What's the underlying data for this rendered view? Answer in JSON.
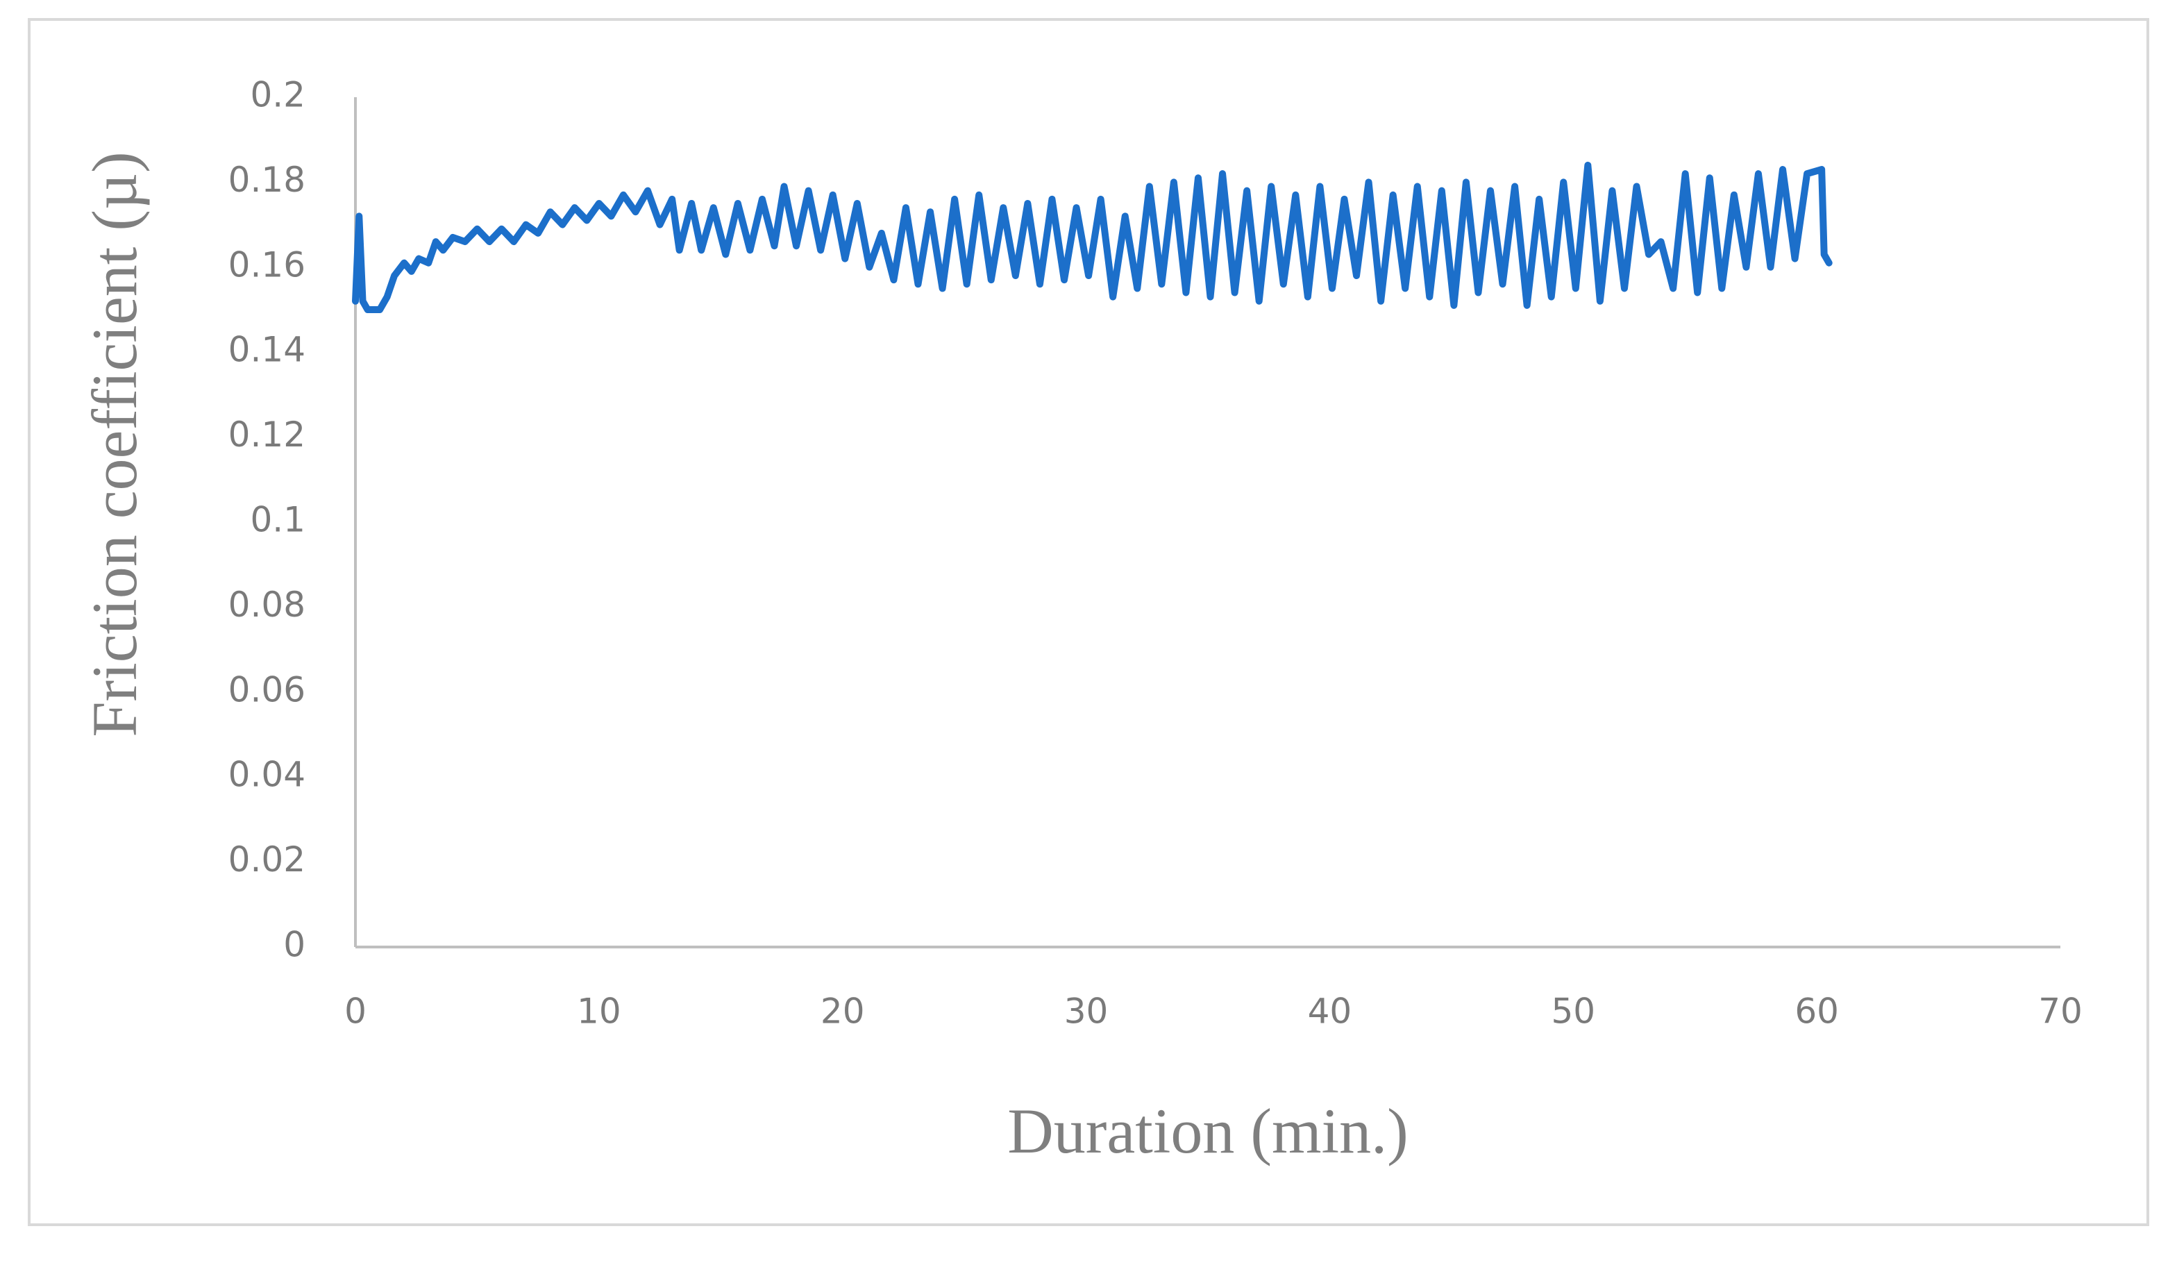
{
  "chart_data": {
    "type": "line",
    "xlabel": "Duration (min.)",
    "ylabel": "Friction coefficient (µ)",
    "xlim": [
      0,
      70
    ],
    "xticks": [
      0,
      10,
      20,
      30,
      40,
      50,
      60,
      70
    ],
    "ylim": [
      0,
      0.2
    ],
    "yticks": [
      0,
      0.02,
      0.04,
      0.06,
      0.08,
      0.1,
      0.12,
      0.14,
      0.16,
      0.18,
      0.2
    ],
    "grid": false,
    "series": [
      {
        "color": "#1c6fca",
        "x": [
          0,
          0.15,
          0.3,
          0.5,
          1,
          1.3,
          1.6,
          2,
          2.3,
          2.6,
          3,
          3.3,
          3.6,
          4,
          4.5,
          5,
          5.5,
          6,
          6.5,
          7,
          7.5,
          8,
          8.5,
          9,
          9.5,
          10,
          10.5,
          11,
          11.5,
          12,
          12.5,
          13,
          13.3,
          13.8,
          14.2,
          14.7,
          15.2,
          15.7,
          16.2,
          16.7,
          17.2,
          17.6,
          18.1,
          18.6,
          19.1,
          19.6,
          20.1,
          20.6,
          21.1,
          21.6,
          22.1,
          22.6,
          23.1,
          23.6,
          24.1,
          24.6,
          25.1,
          25.6,
          26.1,
          26.6,
          27.1,
          27.6,
          28.1,
          28.6,
          29.1,
          29.6,
          30.1,
          30.6,
          31.1,
          31.6,
          32.1,
          32.6,
          33.1,
          33.6,
          34.1,
          34.6,
          35.1,
          35.6,
          36.1,
          36.6,
          37.1,
          37.6,
          38.1,
          38.6,
          39.1,
          39.6,
          40.1,
          40.6,
          41.1,
          41.6,
          42.1,
          42.6,
          43.1,
          43.6,
          44.1,
          44.6,
          45.1,
          45.6,
          46.1,
          46.6,
          47.1,
          47.6,
          48.1,
          48.6,
          49.1,
          49.6,
          50.1,
          50.6,
          51.1,
          51.6,
          52.1,
          52.6,
          53.1,
          53.6,
          54.1,
          54.6,
          55.1,
          55.6,
          56.1,
          56.6,
          57.1,
          57.6,
          58.1,
          58.6,
          59.1,
          59.6,
          60.2,
          60.3,
          60.5
        ],
        "values": [
          0.152,
          0.172,
          0.152,
          0.15,
          0.15,
          0.153,
          0.158,
          0.161,
          0.159,
          0.162,
          0.161,
          0.166,
          0.164,
          0.167,
          0.166,
          0.169,
          0.166,
          0.169,
          0.166,
          0.17,
          0.168,
          0.173,
          0.17,
          0.174,
          0.171,
          0.175,
          0.172,
          0.177,
          0.173,
          0.178,
          0.17,
          0.176,
          0.164,
          0.175,
          0.164,
          0.174,
          0.163,
          0.175,
          0.164,
          0.176,
          0.165,
          0.179,
          0.165,
          0.178,
          0.164,
          0.177,
          0.162,
          0.175,
          0.16,
          0.168,
          0.157,
          0.174,
          0.156,
          0.173,
          0.155,
          0.176,
          0.156,
          0.177,
          0.157,
          0.174,
          0.158,
          0.175,
          0.156,
          0.176,
          0.157,
          0.174,
          0.158,
          0.176,
          0.153,
          0.172,
          0.155,
          0.179,
          0.156,
          0.18,
          0.154,
          0.181,
          0.153,
          0.182,
          0.154,
          0.178,
          0.152,
          0.179,
          0.156,
          0.177,
          0.153,
          0.179,
          0.155,
          0.176,
          0.158,
          0.18,
          0.152,
          0.177,
          0.155,
          0.179,
          0.153,
          0.178,
          0.151,
          0.18,
          0.154,
          0.178,
          0.156,
          0.179,
          0.151,
          0.176,
          0.153,
          0.18,
          0.155,
          0.184,
          0.152,
          0.178,
          0.155,
          0.179,
          0.163,
          0.166,
          0.155,
          0.182,
          0.154,
          0.181,
          0.155,
          0.177,
          0.16,
          0.182,
          0.16,
          0.183,
          0.162,
          0.182,
          0.183,
          0.163,
          0.161
        ]
      }
    ]
  }
}
